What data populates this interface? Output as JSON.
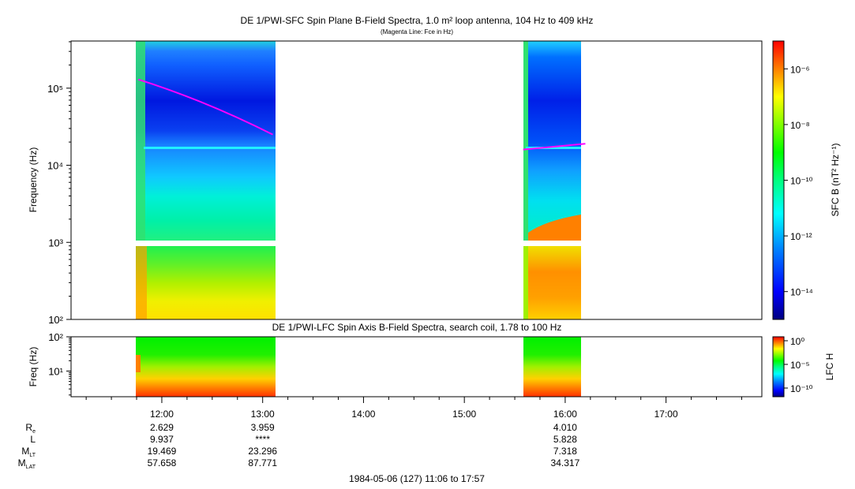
{
  "chart_data": [
    {
      "type": "heatmap",
      "title": "DE 1/PWI-SFC  Spin Plane B-Field Spectra, 1.0 m² loop antenna, 104 Hz to 409 kHz",
      "subtitle": "(Magenta Line: Fce in Hz)",
      "ylabel": "Frequency (Hz)",
      "y_scale": "log",
      "ylim": [
        100,
        409000
      ],
      "y_ticks": [
        "10²",
        "10³",
        "10⁴",
        "10⁵"
      ],
      "xlim": [
        "11:06",
        "17:57"
      ],
      "colorbar": {
        "label": "SFC B (nT² Hz⁻¹)",
        "scale": "log",
        "range": [
          1e-15,
          1e-05
        ],
        "ticks": [
          "10⁻⁶",
          "10⁻⁸",
          "10⁻¹⁰",
          "10⁻¹²",
          "10⁻¹⁴"
        ],
        "colors": [
          "#000080",
          "#0000ff",
          "#0080ff",
          "#00ffff",
          "#00ff80",
          "#00ff00",
          "#80ff00",
          "#ffff00",
          "#ff8000",
          "#ff0000"
        ]
      },
      "data_intervals": [
        {
          "start": "11:43",
          "end": "13:06"
        },
        {
          "start": "15:35",
          "end": "16:12"
        }
      ],
      "gap_hz": [
        900,
        1050
      ],
      "fce_line": {
        "color": "#ff00ff",
        "segments": [
          {
            "time": [
              "11:46",
              "13:06"
            ],
            "fce_hz": [
              130000,
              25000
            ]
          },
          {
            "time": [
              "15:35",
              "16:12"
            ],
            "fce_hz": [
              16000,
              19000
            ]
          }
        ]
      },
      "cyan_line_hz": 16000
    },
    {
      "type": "heatmap",
      "title": "DE 1/PWI-LFC  Spin Axis B-Field Spectra, search coil, 1.78 to 100 Hz",
      "ylabel": "Freq (Hz)",
      "y_scale": "log",
      "ylim": [
        1.78,
        100
      ],
      "y_ticks": [
        "10¹",
        "10²"
      ],
      "colorbar": {
        "label": "LFC H",
        "scale": "log",
        "ticks": [
          "10⁰",
          "10⁻⁵",
          "10⁻¹⁰"
        ]
      },
      "data_intervals": [
        {
          "start": "11:43",
          "end": "13:06"
        },
        {
          "start": "15:35",
          "end": "16:12"
        }
      ]
    }
  ],
  "x_axis": {
    "tick_labels": [
      "12:00",
      "13:00",
      "14:00",
      "15:00",
      "16:00",
      "17:00"
    ]
  },
  "ephemeris": {
    "rows": [
      {
        "label": "R",
        "sub": "e",
        "values": [
          "2.629",
          "3.959",
          "",
          "",
          "4.010",
          ""
        ]
      },
      {
        "label": "L",
        "sub": "",
        "values": [
          "9.937",
          "****",
          "",
          "",
          "5.828",
          ""
        ]
      },
      {
        "label": "M",
        "sub": "LT",
        "values": [
          "19.469",
          "23.296",
          "",
          "",
          "7.318",
          ""
        ]
      },
      {
        "label": "M",
        "sub": "LAT",
        "values": [
          "57.658",
          "87.771",
          "",
          "",
          "34.317",
          ""
        ]
      }
    ]
  },
  "footer": "1984-05-06 (127) 11:06 to 17:57"
}
